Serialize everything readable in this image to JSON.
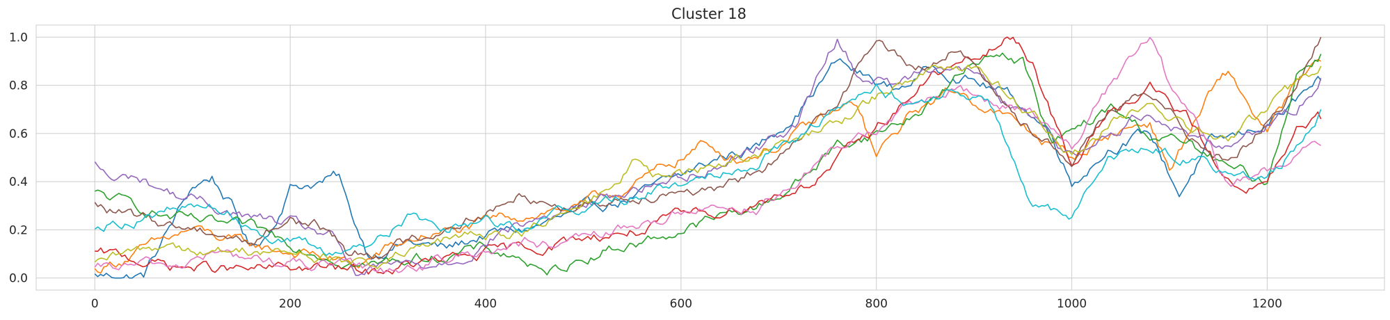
{
  "chart_data": {
    "type": "line",
    "title": "Cluster 18",
    "xlabel": "",
    "ylabel": "",
    "xlim": [
      -60,
      1320
    ],
    "ylim": [
      -0.05,
      1.05
    ],
    "xticks": [
      0,
      200,
      400,
      600,
      800,
      1000,
      1200
    ],
    "yticks": [
      0.0,
      0.2,
      0.4,
      0.6,
      0.8,
      1.0
    ],
    "xtick_labels": [
      "0",
      "200",
      "400",
      "600",
      "800",
      "1000",
      "1200"
    ],
    "ytick_labels": [
      "0.0",
      "0.2",
      "0.4",
      "0.6",
      "0.8",
      "1.0"
    ],
    "grid": true,
    "legend": false,
    "series": [
      {
        "color": "#1f77b4",
        "values": [
          [
            0,
            0.01
          ],
          [
            50,
            0.01
          ],
          [
            100,
            0.38
          ],
          [
            120,
            0.42
          ],
          [
            140,
            0.3
          ],
          [
            160,
            0.12
          ],
          [
            180,
            0.2
          ],
          [
            200,
            0.38
          ],
          [
            230,
            0.4
          ],
          [
            250,
            0.42
          ],
          [
            260,
            0.28
          ],
          [
            280,
            0.1
          ],
          [
            320,
            0.15
          ],
          [
            360,
            0.12
          ],
          [
            400,
            0.18
          ],
          [
            440,
            0.2
          ],
          [
            480,
            0.25
          ],
          [
            520,
            0.3
          ],
          [
            560,
            0.35
          ],
          [
            600,
            0.42
          ],
          [
            640,
            0.5
          ],
          [
            680,
            0.55
          ],
          [
            720,
            0.7
          ],
          [
            760,
            0.9
          ],
          [
            780,
            0.85
          ],
          [
            820,
            0.78
          ],
          [
            860,
            0.88
          ],
          [
            900,
            0.82
          ],
          [
            940,
            0.75
          ],
          [
            980,
            0.6
          ],
          [
            1000,
            0.4
          ],
          [
            1040,
            0.55
          ],
          [
            1080,
            0.6
          ],
          [
            1110,
            0.35
          ],
          [
            1140,
            0.55
          ],
          [
            1180,
            0.6
          ],
          [
            1220,
            0.7
          ],
          [
            1255,
            0.82
          ]
        ]
      },
      {
        "color": "#ff7f0e",
        "values": [
          [
            0,
            0.03
          ],
          [
            40,
            0.1
          ],
          [
            100,
            0.2
          ],
          [
            140,
            0.15
          ],
          [
            180,
            0.12
          ],
          [
            220,
            0.1
          ],
          [
            270,
            0.05
          ],
          [
            300,
            0.12
          ],
          [
            340,
            0.18
          ],
          [
            380,
            0.2
          ],
          [
            420,
            0.25
          ],
          [
            460,
            0.28
          ],
          [
            500,
            0.3
          ],
          [
            560,
            0.4
          ],
          [
            600,
            0.5
          ],
          [
            620,
            0.55
          ],
          [
            660,
            0.5
          ],
          [
            700,
            0.55
          ],
          [
            740,
            0.65
          ],
          [
            780,
            0.72
          ],
          [
            800,
            0.5
          ],
          [
            840,
            0.7
          ],
          [
            880,
            0.78
          ],
          [
            920,
            0.7
          ],
          [
            960,
            0.6
          ],
          [
            1000,
            0.5
          ],
          [
            1040,
            0.6
          ],
          [
            1080,
            0.65
          ],
          [
            1100,
            0.45
          ],
          [
            1140,
            0.75
          ],
          [
            1160,
            0.85
          ],
          [
            1200,
            0.6
          ],
          [
            1230,
            0.8
          ],
          [
            1255,
            0.9
          ]
        ]
      },
      {
        "color": "#2ca02c",
        "values": [
          [
            0,
            0.35
          ],
          [
            40,
            0.3
          ],
          [
            80,
            0.25
          ],
          [
            120,
            0.22
          ],
          [
            160,
            0.2
          ],
          [
            200,
            0.15
          ],
          [
            240,
            0.1
          ],
          [
            280,
            0.05
          ],
          [
            320,
            0.08
          ],
          [
            360,
            0.1
          ],
          [
            400,
            0.12
          ],
          [
            440,
            0.08
          ],
          [
            460,
            0.0
          ],
          [
            480,
            0.05
          ],
          [
            520,
            0.12
          ],
          [
            560,
            0.15
          ],
          [
            600,
            0.2
          ],
          [
            640,
            0.25
          ],
          [
            680,
            0.3
          ],
          [
            720,
            0.4
          ],
          [
            760,
            0.55
          ],
          [
            800,
            0.6
          ],
          [
            840,
            0.68
          ],
          [
            880,
            0.82
          ],
          [
            920,
            0.95
          ],
          [
            950,
            0.9
          ],
          [
            980,
            0.55
          ],
          [
            1000,
            0.6
          ],
          [
            1040,
            0.7
          ],
          [
            1080,
            0.6
          ],
          [
            1120,
            0.55
          ],
          [
            1160,
            0.45
          ],
          [
            1200,
            0.4
          ],
          [
            1230,
            0.85
          ],
          [
            1255,
            0.93
          ]
        ]
      },
      {
        "color": "#d62728",
        "values": [
          [
            0,
            0.1
          ],
          [
            40,
            0.08
          ],
          [
            80,
            0.05
          ],
          [
            120,
            0.04
          ],
          [
            160,
            0.03
          ],
          [
            200,
            0.04
          ],
          [
            240,
            0.04
          ],
          [
            280,
            0.02
          ],
          [
            320,
            0.05
          ],
          [
            360,
            0.07
          ],
          [
            400,
            0.1
          ],
          [
            440,
            0.12
          ],
          [
            480,
            0.15
          ],
          [
            520,
            0.18
          ],
          [
            560,
            0.2
          ],
          [
            600,
            0.25
          ],
          [
            640,
            0.28
          ],
          [
            680,
            0.32
          ],
          [
            720,
            0.38
          ],
          [
            740,
            0.42
          ],
          [
            780,
            0.55
          ],
          [
            820,
            0.7
          ],
          [
            860,
            0.85
          ],
          [
            900,
            0.9
          ],
          [
            940,
            1.0
          ],
          [
            960,
            0.9
          ],
          [
            1000,
            0.45
          ],
          [
            1040,
            0.7
          ],
          [
            1080,
            0.8
          ],
          [
            1120,
            0.65
          ],
          [
            1160,
            0.4
          ],
          [
            1200,
            0.38
          ],
          [
            1230,
            0.6
          ],
          [
            1255,
            0.66
          ]
        ]
      },
      {
        "color": "#9467bd",
        "values": [
          [
            0,
            0.47
          ],
          [
            20,
            0.4
          ],
          [
            40,
            0.42
          ],
          [
            80,
            0.35
          ],
          [
            120,
            0.3
          ],
          [
            160,
            0.25
          ],
          [
            200,
            0.22
          ],
          [
            240,
            0.18
          ],
          [
            270,
            0.0
          ],
          [
            300,
            0.05
          ],
          [
            340,
            0.05
          ],
          [
            380,
            0.1
          ],
          [
            420,
            0.2
          ],
          [
            460,
            0.25
          ],
          [
            500,
            0.3
          ],
          [
            560,
            0.38
          ],
          [
            600,
            0.42
          ],
          [
            640,
            0.48
          ],
          [
            680,
            0.55
          ],
          [
            720,
            0.65
          ],
          [
            760,
            1.0
          ],
          [
            780,
            0.85
          ],
          [
            820,
            0.8
          ],
          [
            860,
            0.9
          ],
          [
            900,
            0.85
          ],
          [
            940,
            0.7
          ],
          [
            980,
            0.6
          ],
          [
            1000,
            0.5
          ],
          [
            1040,
            0.6
          ],
          [
            1080,
            0.7
          ],
          [
            1120,
            0.6
          ],
          [
            1160,
            0.55
          ],
          [
            1200,
            0.65
          ],
          [
            1230,
            0.7
          ],
          [
            1255,
            0.83
          ]
        ]
      },
      {
        "color": "#8c564b",
        "values": [
          [
            0,
            0.3
          ],
          [
            40,
            0.25
          ],
          [
            80,
            0.22
          ],
          [
            120,
            0.2
          ],
          [
            160,
            0.15
          ],
          [
            200,
            0.25
          ],
          [
            240,
            0.2
          ],
          [
            260,
            0.1
          ],
          [
            300,
            0.12
          ],
          [
            340,
            0.18
          ],
          [
            380,
            0.25
          ],
          [
            420,
            0.3
          ],
          [
            440,
            0.35
          ],
          [
            480,
            0.3
          ],
          [
            520,
            0.32
          ],
          [
            560,
            0.35
          ],
          [
            600,
            0.38
          ],
          [
            640,
            0.35
          ],
          [
            680,
            0.45
          ],
          [
            720,
            0.55
          ],
          [
            760,
            0.75
          ],
          [
            800,
            1.0
          ],
          [
            840,
            0.85
          ],
          [
            880,
            0.95
          ],
          [
            920,
            0.8
          ],
          [
            960,
            0.6
          ],
          [
            1000,
            0.5
          ],
          [
            1040,
            0.7
          ],
          [
            1080,
            0.75
          ],
          [
            1120,
            0.6
          ],
          [
            1160,
            0.5
          ],
          [
            1200,
            0.65
          ],
          [
            1230,
            0.8
          ],
          [
            1255,
            1.0
          ]
        ]
      },
      {
        "color": "#e377c2",
        "values": [
          [
            0,
            0.03
          ],
          [
            40,
            0.05
          ],
          [
            80,
            0.05
          ],
          [
            120,
            0.1
          ],
          [
            160,
            0.08
          ],
          [
            200,
            0.06
          ],
          [
            240,
            0.05
          ],
          [
            280,
            0.03
          ],
          [
            320,
            0.05
          ],
          [
            360,
            0.08
          ],
          [
            400,
            0.12
          ],
          [
            440,
            0.15
          ],
          [
            480,
            0.12
          ],
          [
            520,
            0.18
          ],
          [
            560,
            0.22
          ],
          [
            600,
            0.28
          ],
          [
            640,
            0.3
          ],
          [
            680,
            0.3
          ],
          [
            720,
            0.38
          ],
          [
            760,
            0.55
          ],
          [
            800,
            0.62
          ],
          [
            840,
            0.72
          ],
          [
            880,
            0.78
          ],
          [
            920,
            0.72
          ],
          [
            960,
            0.7
          ],
          [
            1000,
            0.55
          ],
          [
            1040,
            0.8
          ],
          [
            1080,
            1.0
          ],
          [
            1100,
            0.8
          ],
          [
            1140,
            0.55
          ],
          [
            1160,
            0.38
          ],
          [
            1200,
            0.45
          ],
          [
            1230,
            0.5
          ],
          [
            1255,
            0.55
          ]
        ]
      },
      {
        "color": "#bcbd22",
        "values": [
          [
            0,
            0.05
          ],
          [
            40,
            0.1
          ],
          [
            80,
            0.15
          ],
          [
            120,
            0.1
          ],
          [
            160,
            0.12
          ],
          [
            200,
            0.1
          ],
          [
            240,
            0.08
          ],
          [
            280,
            0.05
          ],
          [
            320,
            0.1
          ],
          [
            360,
            0.15
          ],
          [
            400,
            0.18
          ],
          [
            440,
            0.2
          ],
          [
            480,
            0.25
          ],
          [
            520,
            0.35
          ],
          [
            550,
            0.48
          ],
          [
            580,
            0.4
          ],
          [
            620,
            0.45
          ],
          [
            660,
            0.5
          ],
          [
            700,
            0.55
          ],
          [
            740,
            0.6
          ],
          [
            780,
            0.7
          ],
          [
            820,
            0.8
          ],
          [
            860,
            0.9
          ],
          [
            900,
            0.88
          ],
          [
            940,
            0.75
          ],
          [
            980,
            0.6
          ],
          [
            1000,
            0.5
          ],
          [
            1040,
            0.65
          ],
          [
            1080,
            0.7
          ],
          [
            1120,
            0.62
          ],
          [
            1160,
            0.58
          ],
          [
            1200,
            0.7
          ],
          [
            1230,
            0.8
          ],
          [
            1255,
            0.88
          ]
        ]
      },
      {
        "color": "#17becf",
        "values": [
          [
            0,
            0.22
          ],
          [
            40,
            0.25
          ],
          [
            80,
            0.28
          ],
          [
            120,
            0.3
          ],
          [
            160,
            0.22
          ],
          [
            200,
            0.15
          ],
          [
            240,
            0.1
          ],
          [
            280,
            0.15
          ],
          [
            320,
            0.25
          ],
          [
            360,
            0.22
          ],
          [
            400,
            0.25
          ],
          [
            440,
            0.22
          ],
          [
            480,
            0.28
          ],
          [
            520,
            0.32
          ],
          [
            560,
            0.35
          ],
          [
            600,
            0.4
          ],
          [
            640,
            0.45
          ],
          [
            680,
            0.5
          ],
          [
            720,
            0.6
          ],
          [
            760,
            0.7
          ],
          [
            800,
            0.78
          ],
          [
            840,
            0.72
          ],
          [
            880,
            0.8
          ],
          [
            920,
            0.7
          ],
          [
            960,
            0.3
          ],
          [
            1000,
            0.24
          ],
          [
            1040,
            0.5
          ],
          [
            1080,
            0.55
          ],
          [
            1120,
            0.5
          ],
          [
            1160,
            0.45
          ],
          [
            1200,
            0.4
          ],
          [
            1230,
            0.55
          ],
          [
            1255,
            0.7
          ]
        ]
      }
    ]
  }
}
